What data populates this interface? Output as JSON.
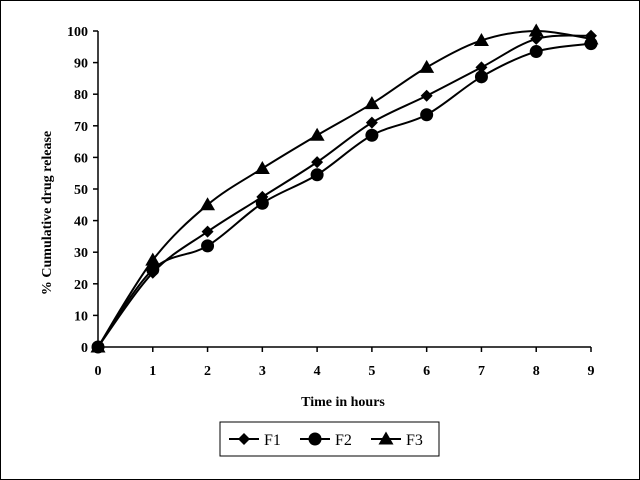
{
  "chart_data": {
    "type": "line",
    "title": "",
    "xlabel": "Time in hours",
    "ylabel": "% Cumulative drug release",
    "x": [
      0,
      1,
      2,
      3,
      4,
      5,
      6,
      7,
      8,
      9
    ],
    "xlim": [
      0,
      9
    ],
    "ylim": [
      0,
      100
    ],
    "x_ticks": [
      "0",
      "1",
      "2",
      "3",
      "4",
      "5",
      "6",
      "7",
      "8",
      "9"
    ],
    "y_ticks": [
      "0",
      "10",
      "20",
      "30",
      "40",
      "50",
      "60",
      "70",
      "80",
      "90",
      "100"
    ],
    "grid": false,
    "legend_position": "bottom",
    "series": [
      {
        "name": "F1",
        "marker": "diamond",
        "color": "#000000",
        "values": [
          0,
          23.5,
          36.5,
          47.5,
          58.5,
          71,
          79.5,
          88.5,
          97.5,
          98.5
        ]
      },
      {
        "name": "F2",
        "marker": "circle",
        "color": "#000000",
        "values": [
          0,
          24.5,
          32,
          45.5,
          54.5,
          67,
          73.5,
          85.5,
          93.5,
          96
        ]
      },
      {
        "name": "F3",
        "marker": "triangle",
        "color": "#000000",
        "values": [
          0,
          27.5,
          45,
          56.5,
          67,
          77,
          88.5,
          97,
          100,
          97.5
        ]
      }
    ]
  }
}
